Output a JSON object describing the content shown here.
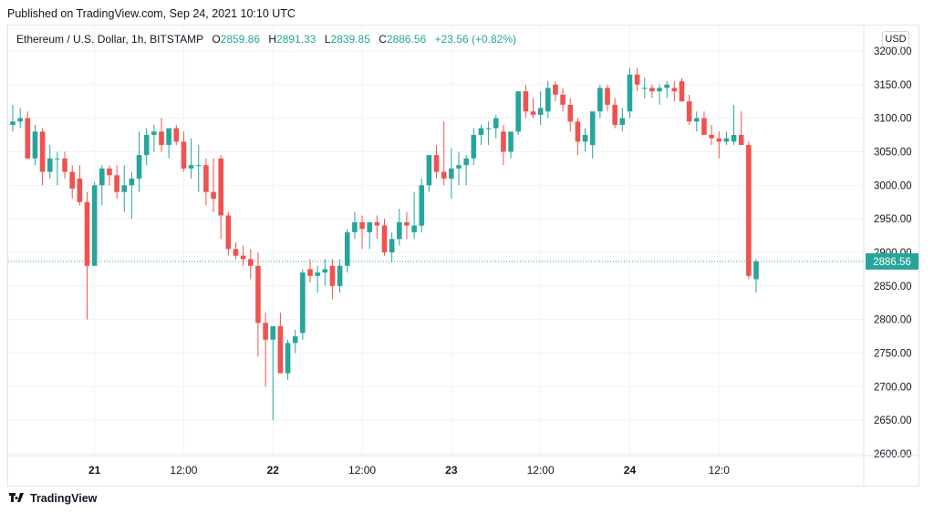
{
  "caption": "Published on TradingView.com, Sep 24, 2021 10:10 UTC",
  "brand": "TradingView",
  "legend": {
    "symbol": "Ethereum / U.S. Dollar, 1h, BITSTAMP",
    "o_label": "O",
    "o": "2859.86",
    "h_label": "H",
    "h": "2891.33",
    "l_label": "L",
    "l": "2839.85",
    "c_label": "C",
    "c": "2886.56",
    "change": "+23.56 (+0.82%)"
  },
  "currency_button": "USD",
  "colors": {
    "up": "#26a69a",
    "down": "#ef5350",
    "grid": "#f0f3fa",
    "text": "#131722",
    "border": "#e0e3eb"
  },
  "chart_data": {
    "type": "candlestick",
    "title": "Ethereum / U.S. Dollar, 1h, BITSTAMP",
    "xlabel": "",
    "ylabel": "",
    "ylim": [
      2600,
      3210
    ],
    "y_ticks": [
      "3200.00",
      "3150.00",
      "3100.00",
      "3050.00",
      "3000.00",
      "2950.00",
      "2900.00",
      "2850.00",
      "2800.00",
      "2750.00",
      "2700.00",
      "2650.00",
      "2600.00"
    ],
    "x_ticks": [
      {
        "label": "21",
        "bar": 11,
        "bold": true
      },
      {
        "label": "12:00",
        "bar": 23,
        "bold": false
      },
      {
        "label": "22",
        "bar": 35,
        "bold": true
      },
      {
        "label": "12:00",
        "bar": 47,
        "bold": false
      },
      {
        "label": "23",
        "bar": 59,
        "bold": true
      },
      {
        "label": "12:00",
        "bar": 71,
        "bold": false
      },
      {
        "label": "24",
        "bar": 83,
        "bold": true
      },
      {
        "label": "12:0",
        "bar": 95,
        "bold": false
      }
    ],
    "last_price": 2886.56,
    "last_price_label": "2886.56",
    "grid": true,
    "candles": [
      [
        3090,
        3120,
        3080,
        3095
      ],
      [
        3095,
        3115,
        3085,
        3100
      ],
      [
        3100,
        3110,
        3040,
        3040
      ],
      [
        3040,
        3090,
        3030,
        3080
      ],
      [
        3080,
        3085,
        3000,
        3020
      ],
      [
        3020,
        3060,
        3010,
        3040
      ],
      [
        3040,
        3050,
        3000,
        3040
      ],
      [
        3040,
        3050,
        3010,
        3020
      ],
      [
        3020,
        3030,
        2980,
        2995
      ],
      [
        3010,
        3030,
        2970,
        2975
      ],
      [
        2975,
        2990,
        2800,
        2880
      ],
      [
        2880,
        3005,
        2880,
        3000
      ],
      [
        3000,
        3030,
        2970,
        3025
      ],
      [
        3025,
        3030,
        3000,
        3015
      ],
      [
        3015,
        3030,
        2980,
        2990
      ],
      [
        2990,
        3030,
        2960,
        3000
      ],
      [
        3000,
        3020,
        2950,
        3010
      ],
      [
        3010,
        3080,
        2990,
        3045
      ],
      [
        3045,
        3085,
        3030,
        3075
      ],
      [
        3075,
        3090,
        3050,
        3080
      ],
      [
        3080,
        3100,
        3050,
        3060
      ],
      [
        3060,
        3080,
        3040,
        3085
      ],
      [
        3085,
        3090,
        3060,
        3065
      ],
      [
        3065,
        3080,
        3020,
        3025
      ],
      [
        3025,
        3070,
        3010,
        3030
      ],
      [
        3030,
        3060,
        2990,
        3030
      ],
      [
        3030,
        3040,
        2970,
        2990
      ],
      [
        2990,
        3040,
        2960,
        2980
      ],
      [
        3040,
        3045,
        2920,
        2955
      ],
      [
        2955,
        2960,
        2895,
        2905
      ],
      [
        2905,
        2915,
        2890,
        2895
      ],
      [
        2895,
        2910,
        2880,
        2890
      ],
      [
        2890,
        2905,
        2860,
        2880
      ],
      [
        2880,
        2900,
        2745,
        2795
      ],
      [
        2795,
        2810,
        2700,
        2770
      ],
      [
        2770,
        2790,
        2650,
        2790
      ],
      [
        2790,
        2810,
        2720,
        2720
      ],
      [
        2720,
        2770,
        2710,
        2765
      ],
      [
        2765,
        2785,
        2750,
        2775
      ],
      [
        2780,
        2875,
        2770,
        2870
      ],
      [
        2875,
        2890,
        2855,
        2865
      ],
      [
        2865,
        2880,
        2840,
        2870
      ],
      [
        2870,
        2890,
        2850,
        2875
      ],
      [
        2880,
        2890,
        2830,
        2850
      ],
      [
        2850,
        2890,
        2840,
        2880
      ],
      [
        2880,
        2935,
        2870,
        2930
      ],
      [
        2930,
        2960,
        2920,
        2945
      ],
      [
        2945,
        2955,
        2905,
        2935
      ],
      [
        2930,
        2945,
        2905,
        2945
      ],
      [
        2945,
        2955,
        2920,
        2940
      ],
      [
        2940,
        2950,
        2895,
        2900
      ],
      [
        2900,
        2930,
        2885,
        2920
      ],
      [
        2920,
        2965,
        2910,
        2945
      ],
      [
        2945,
        2960,
        2920,
        2940
      ],
      [
        2930,
        2990,
        2920,
        2940
      ],
      [
        2940,
        3010,
        2930,
        3000
      ],
      [
        3000,
        3045,
        2990,
        3045
      ],
      [
        3045,
        3060,
        3010,
        3020
      ],
      [
        3020,
        3095,
        3000,
        3010
      ],
      [
        3010,
        3055,
        2980,
        3025
      ],
      [
        3025,
        3050,
        3000,
        3030
      ],
      [
        3030,
        3045,
        3000,
        3040
      ],
      [
        3040,
        3085,
        3030,
        3075
      ],
      [
        3075,
        3090,
        3060,
        3085
      ],
      [
        3085,
        3095,
        3060,
        3085
      ],
      [
        3085,
        3105,
        3070,
        3100
      ],
      [
        3080,
        3090,
        3030,
        3050
      ],
      [
        3050,
        3075,
        3040,
        3080
      ],
      [
        3080,
        3140,
        3075,
        3140
      ],
      [
        3140,
        3150,
        3100,
        3110
      ],
      [
        3110,
        3130,
        3100,
        3105
      ],
      [
        3105,
        3140,
        3090,
        3115
      ],
      [
        3110,
        3155,
        3100,
        3145
      ],
      [
        3150,
        3155,
        3125,
        3135
      ],
      [
        3135,
        3145,
        3110,
        3120
      ],
      [
        3120,
        3130,
        3080,
        3095
      ],
      [
        3095,
        3100,
        3045,
        3065
      ],
      [
        3065,
        3085,
        3050,
        3075
      ],
      [
        3060,
        3105,
        3040,
        3110
      ],
      [
        3110,
        3150,
        3100,
        3145
      ],
      [
        3145,
        3150,
        3110,
        3120
      ],
      [
        3120,
        3130,
        3085,
        3090
      ],
      [
        3090,
        3115,
        3080,
        3100
      ],
      [
        3110,
        3175,
        3100,
        3165
      ],
      [
        3165,
        3175,
        3140,
        3150
      ],
      [
        3145,
        3160,
        3130,
        3145
      ],
      [
        3145,
        3150,
        3130,
        3140
      ],
      [
        3140,
        3150,
        3120,
        3145
      ],
      [
        3145,
        3155,
        3130,
        3150
      ],
      [
        3145,
        3155,
        3125,
        3140
      ],
      [
        3155,
        3160,
        3125,
        3125
      ],
      [
        3125,
        3135,
        3090,
        3095
      ],
      [
        3095,
        3110,
        3080,
        3100
      ],
      [
        3100,
        3110,
        3075,
        3075
      ],
      [
        3075,
        3090,
        3060,
        3070
      ],
      [
        3070,
        3080,
        3040,
        3065
      ],
      [
        3065,
        3080,
        3060,
        3070
      ],
      [
        3065,
        3120,
        3060,
        3075
      ],
      [
        3075,
        3110,
        3060,
        3060
      ],
      [
        3060,
        3065,
        2860,
        2865
      ],
      [
        2860,
        2890,
        2840,
        2886.56
      ]
    ]
  }
}
